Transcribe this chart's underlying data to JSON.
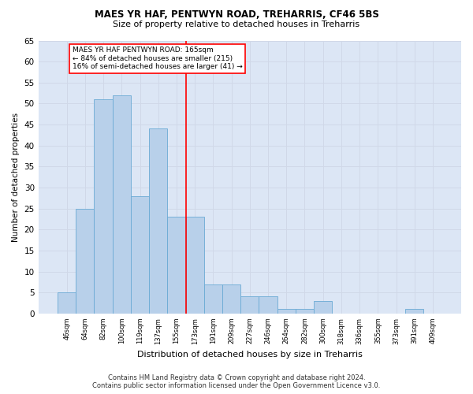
{
  "title1": "MAES YR HAF, PENTWYN ROAD, TREHARRIS, CF46 5BS",
  "title2": "Size of property relative to detached houses in Treharris",
  "xlabel": "Distribution of detached houses by size in Treharris",
  "ylabel": "Number of detached properties",
  "footer1": "Contains HM Land Registry data © Crown copyright and database right 2024.",
  "footer2": "Contains public sector information licensed under the Open Government Licence v3.0.",
  "annotation_line1": "MAES YR HAF PENTWYN ROAD: 165sqm",
  "annotation_line2": "← 84% of detached houses are smaller (215)",
  "annotation_line3": "16% of semi-detached houses are larger (41) →",
  "categories": [
    "46sqm",
    "64sqm",
    "82sqm",
    "100sqm",
    "119sqm",
    "137sqm",
    "155sqm",
    "173sqm",
    "191sqm",
    "209sqm",
    "227sqm",
    "246sqm",
    "264sqm",
    "282sqm",
    "300sqm",
    "318sqm",
    "336sqm",
    "355sqm",
    "373sqm",
    "391sqm",
    "409sqm"
  ],
  "values": [
    5,
    25,
    51,
    52,
    28,
    44,
    23,
    23,
    7,
    7,
    4,
    4,
    1,
    1,
    3,
    0,
    0,
    0,
    0,
    1,
    0
  ],
  "bar_color": "#b8d0ea",
  "bar_edge_color": "#6aaad4",
  "vline_color": "red",
  "vline_x": 6.5,
  "grid_color": "#d0d8e8",
  "background_color": "#dce6f5",
  "ylim": [
    0,
    65
  ],
  "yticks": [
    0,
    5,
    10,
    15,
    20,
    25,
    30,
    35,
    40,
    45,
    50,
    55,
    60,
    65
  ],
  "title1_fontsize": 8.5,
  "title2_fontsize": 8.0,
  "xlabel_fontsize": 8.0,
  "ylabel_fontsize": 7.5,
  "xtick_fontsize": 6.0,
  "ytick_fontsize": 7.5,
  "ann_fontsize": 6.5,
  "footer_fontsize": 6.0
}
